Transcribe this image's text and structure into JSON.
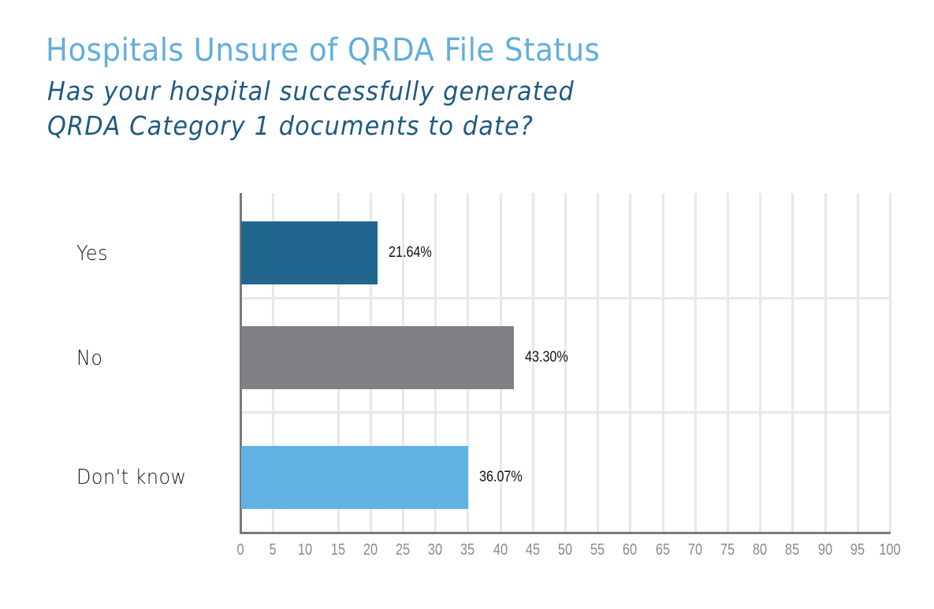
{
  "header": {
    "title": "Hospitals Unsure of QRDA File Status",
    "subtitle_line1": "Has your hospital successfully generated",
    "subtitle_line2": "QRDA Category 1 documents to date?"
  },
  "colors": {
    "title": "#62aedd",
    "subtitle": "#1f5a80",
    "bar_yes": "#21668f",
    "bar_no": "#808084",
    "bar_dont_know": "#62b3e3",
    "grid": "#e8e8e8",
    "axis": "#7a7a7a"
  },
  "chart_data": {
    "type": "bar",
    "orientation": "horizontal",
    "title": "Hospitals Unsure of QRDA File Status",
    "subtitle": "Has your hospital successfully generated QRDA Category 1 documents to date?",
    "categories": [
      "Yes",
      "No",
      "Don't know"
    ],
    "values": [
      21.64,
      43.3,
      36.07
    ],
    "value_labels": [
      "21.64%",
      "43.30%",
      "36.07%"
    ],
    "xlabel": "",
    "ylabel": "",
    "xlim": [
      0,
      100
    ],
    "x_ticks": [
      "0",
      "5",
      "10",
      "15",
      "20",
      "25",
      "30",
      "35",
      "40",
      "45",
      "50",
      "55",
      "60",
      "65",
      "70",
      "75",
      "80",
      "85",
      "90",
      "95",
      "100"
    ],
    "grid": true,
    "legend": "none"
  }
}
